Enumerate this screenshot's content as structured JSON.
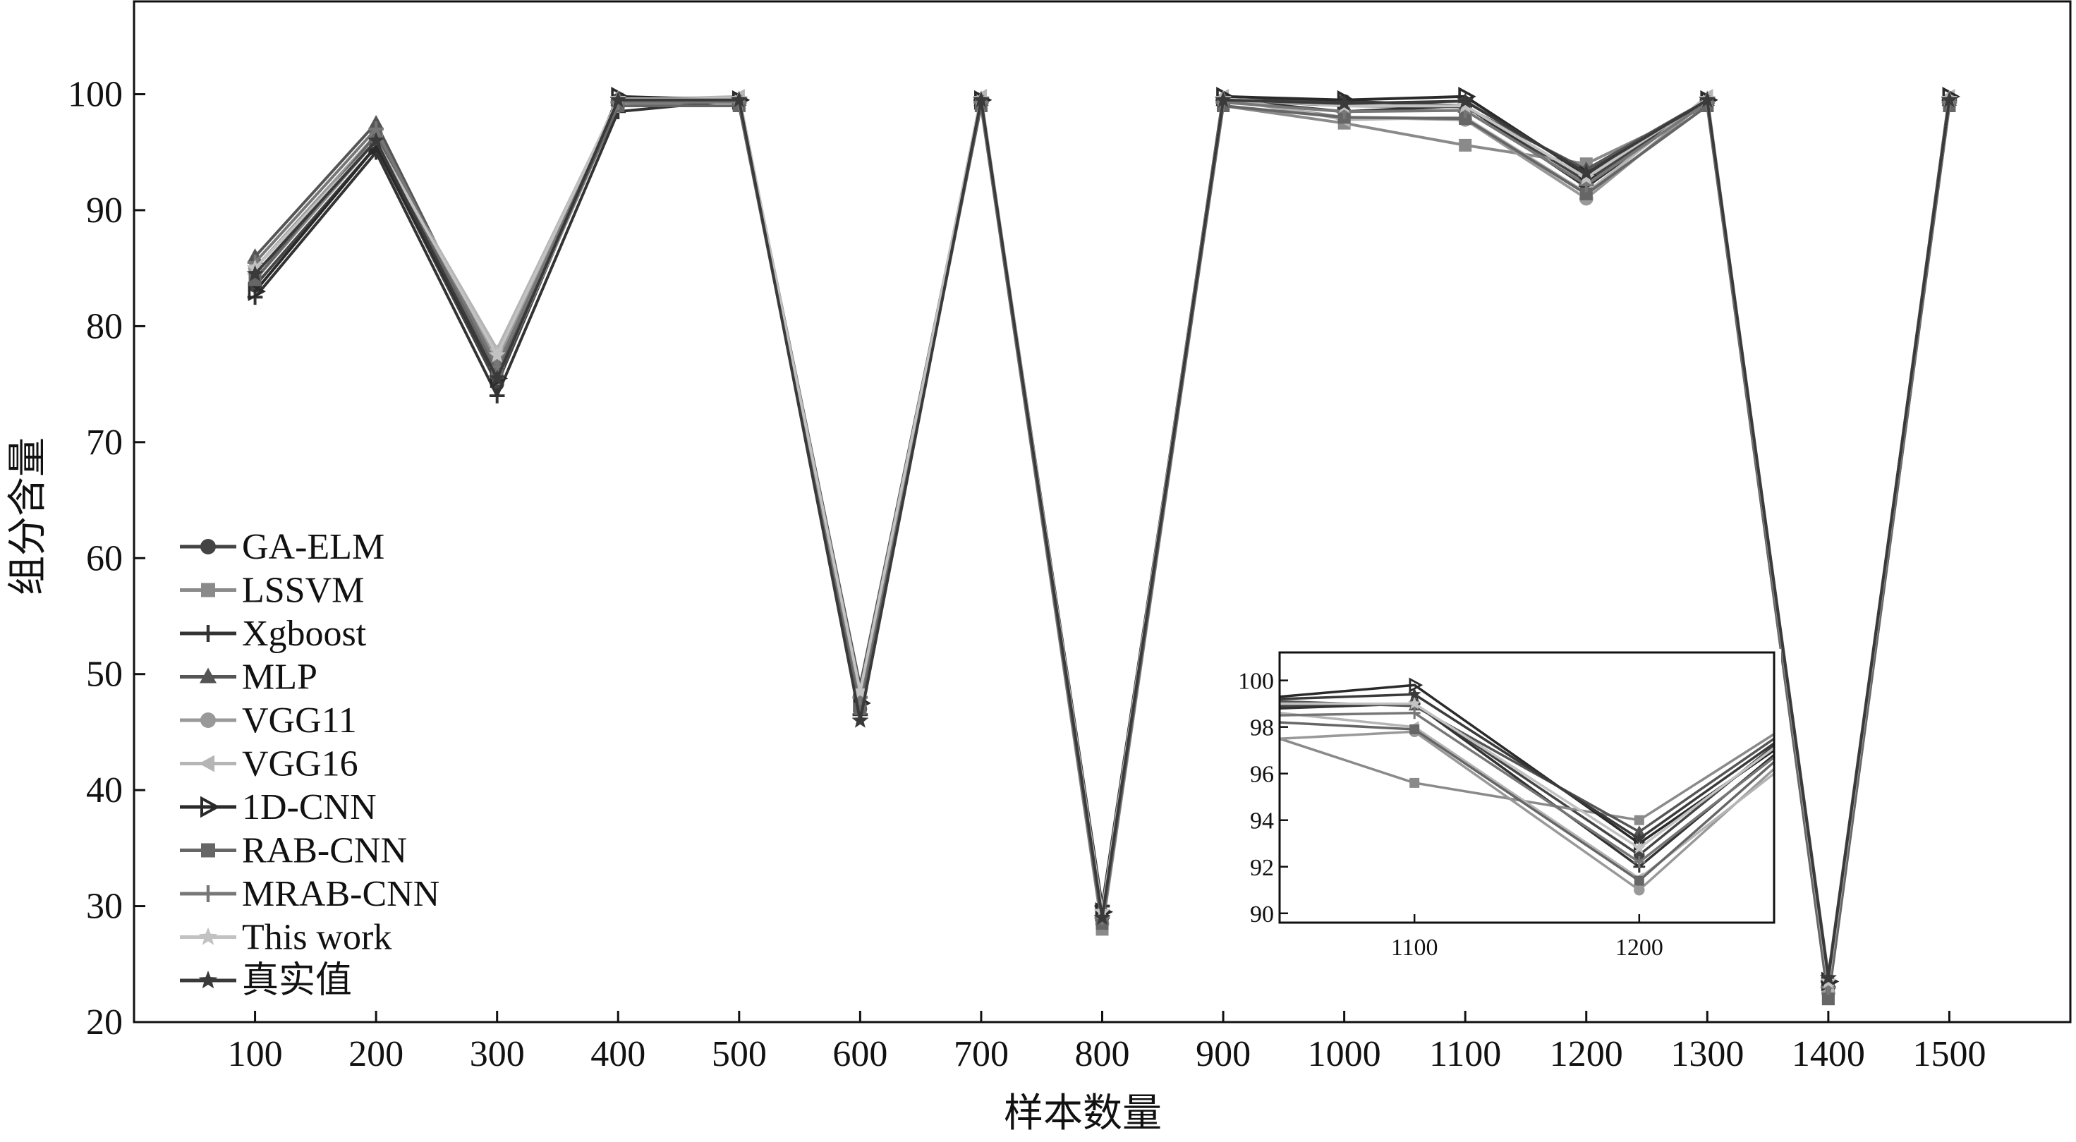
{
  "chart_data": [
    {
      "type": "line",
      "xlabel": "样本数量",
      "ylabel": "组分含量",
      "x": [
        100,
        200,
        300,
        400,
        500,
        600,
        700,
        800,
        900,
        1000,
        1100,
        1200,
        1300,
        1400,
        1500
      ],
      "xticks": [
        "100",
        "200",
        "300",
        "400",
        "500",
        "600",
        "700",
        "800",
        "900",
        "1000",
        "1100",
        "1200",
        "1300",
        "1400",
        "1500"
      ],
      "yticks": [
        "20",
        "30",
        "40",
        "50",
        "60",
        "70",
        "80",
        "90",
        "100"
      ],
      "xlim": [
        0,
        1600
      ],
      "ylim": [
        20,
        108
      ],
      "legend_position": "left-middle",
      "series": [
        {
          "name": "GA-ELM",
          "color": "#444444",
          "marker": "circle",
          "values": [
            83.5,
            95.5,
            75.0,
            99.5,
            99.5,
            47.0,
            99.5,
            29.0,
            99.5,
            99.4,
            99.0,
            92.5,
            99.5,
            23.0,
            99.5
          ]
        },
        {
          "name": "LSSVM",
          "color": "#8a8a8a",
          "marker": "square",
          "values": [
            84.0,
            96.0,
            75.5,
            99.0,
            99.0,
            48.0,
            99.0,
            28.0,
            99.0,
            97.5,
            95.6,
            94.0,
            99.0,
            22.0,
            99.0
          ]
        },
        {
          "name": "Xgboost",
          "color": "#333333",
          "marker": "plus",
          "values": [
            82.5,
            95.0,
            74.0,
            98.5,
            99.5,
            46.5,
            99.5,
            30.0,
            99.5,
            98.5,
            99.0,
            92.0,
            99.5,
            23.5,
            99.5
          ]
        },
        {
          "name": "MLP",
          "color": "#555555",
          "marker": "triangle",
          "values": [
            86.0,
            97.5,
            76.5,
            99.5,
            99.5,
            49.0,
            99.5,
            29.5,
            99.5,
            99.0,
            98.9,
            93.5,
            99.5,
            24.0,
            99.5
          ]
        },
        {
          "name": "VGG11",
          "color": "#999999",
          "marker": "circle",
          "values": [
            85.0,
            96.5,
            77.0,
            99.0,
            99.5,
            48.5,
            99.5,
            28.5,
            99.5,
            98.0,
            97.8,
            91.0,
            99.5,
            22.5,
            99.5
          ]
        },
        {
          "name": "VGG16",
          "color": "#b5b5b5",
          "marker": "tri-left",
          "values": [
            84.5,
            96.0,
            78.0,
            99.5,
            99.8,
            48.0,
            99.8,
            29.0,
            99.8,
            97.8,
            98.0,
            91.5,
            99.8,
            23.0,
            99.8
          ]
        },
        {
          "name": "1D-CNN",
          "color": "#2a2a2a",
          "marker": "tri-right",
          "values": [
            83.0,
            95.5,
            75.5,
            99.8,
            99.5,
            47.5,
            99.5,
            29.5,
            99.8,
            99.5,
            99.8,
            93.0,
            99.5,
            23.5,
            99.8
          ]
        },
        {
          "name": "RAB-CNN",
          "color": "#666666",
          "marker": "square",
          "values": [
            84.0,
            96.5,
            76.0,
            99.0,
            99.0,
            47.0,
            99.0,
            28.5,
            99.0,
            98.0,
            97.9,
            91.4,
            99.0,
            22.0,
            99.0
          ]
        },
        {
          "name": "MRAB-CNN",
          "color": "#777777",
          "marker": "plus",
          "values": [
            85.5,
            97.0,
            76.5,
            99.3,
            99.3,
            48.0,
            99.3,
            29.0,
            99.3,
            98.5,
            98.6,
            92.2,
            99.3,
            23.0,
            99.3
          ]
        },
        {
          "name": "This work",
          "color": "#c2c2c2",
          "marker": "star",
          "values": [
            85.0,
            96.0,
            77.5,
            99.6,
            99.6,
            48.5,
            99.6,
            29.5,
            99.6,
            99.0,
            99.0,
            92.8,
            99.6,
            23.5,
            99.6
          ]
        },
        {
          "name": "真实值",
          "color": "#3a3a3a",
          "marker": "star",
          "values": [
            84.5,
            96.0,
            75.5,
            99.5,
            99.5,
            46.0,
            99.5,
            29.0,
            99.5,
            99.2,
            99.4,
            93.2,
            99.5,
            23.8,
            99.5
          ]
        }
      ]
    },
    {
      "type": "line",
      "inset": true,
      "xticks": [
        "1100",
        "1200"
      ],
      "yticks": [
        "90",
        "92",
        "94",
        "96",
        "98",
        "100"
      ],
      "xlim": [
        1040,
        1260
      ],
      "ylim": [
        89.6,
        101.2
      ],
      "series": [
        {
          "name": "GA-ELM",
          "x": [
            1040,
            1100,
            1200,
            1260
          ],
          "values": [
            98.9,
            99.0,
            92.5,
            97.2
          ]
        },
        {
          "name": "LSSVM",
          "x": [
            1040,
            1100,
            1200,
            1260
          ],
          "values": [
            97.5,
            95.6,
            94.0,
            97.7
          ]
        },
        {
          "name": "Xgboost",
          "x": [
            1040,
            1100,
            1200,
            1260
          ],
          "values": [
            98.8,
            99.0,
            92.0,
            96.8
          ]
        },
        {
          "name": "MLP",
          "x": [
            1040,
            1100,
            1200,
            1260
          ],
          "values": [
            99.1,
            98.9,
            93.5,
            97.5
          ]
        },
        {
          "name": "VGG11",
          "x": [
            1040,
            1100,
            1200,
            1260
          ],
          "values": [
            97.5,
            97.8,
            91.0,
            96.2
          ]
        },
        {
          "name": "VGG16",
          "x": [
            1040,
            1100,
            1200,
            1260
          ],
          "values": [
            98.6,
            98.0,
            91.5,
            96.0
          ]
        },
        {
          "name": "1D-CNN",
          "x": [
            1040,
            1100,
            1200,
            1260
          ],
          "values": [
            99.3,
            99.8,
            93.0,
            97.0
          ]
        },
        {
          "name": "RAB-CNN",
          "x": [
            1040,
            1100,
            1200,
            1260
          ],
          "values": [
            98.2,
            97.9,
            91.4,
            96.5
          ]
        },
        {
          "name": "MRAB-CNN",
          "x": [
            1040,
            1100,
            1200,
            1260
          ],
          "values": [
            98.5,
            98.6,
            92.2,
            96.7
          ]
        },
        {
          "name": "This work",
          "x": [
            1040,
            1100,
            1200,
            1260
          ],
          "values": [
            99.0,
            99.0,
            92.8,
            97.1
          ]
        },
        {
          "name": "真实值",
          "x": [
            1040,
            1100,
            1200,
            1260
          ],
          "values": [
            99.2,
            99.4,
            93.2,
            97.3
          ]
        }
      ]
    }
  ]
}
